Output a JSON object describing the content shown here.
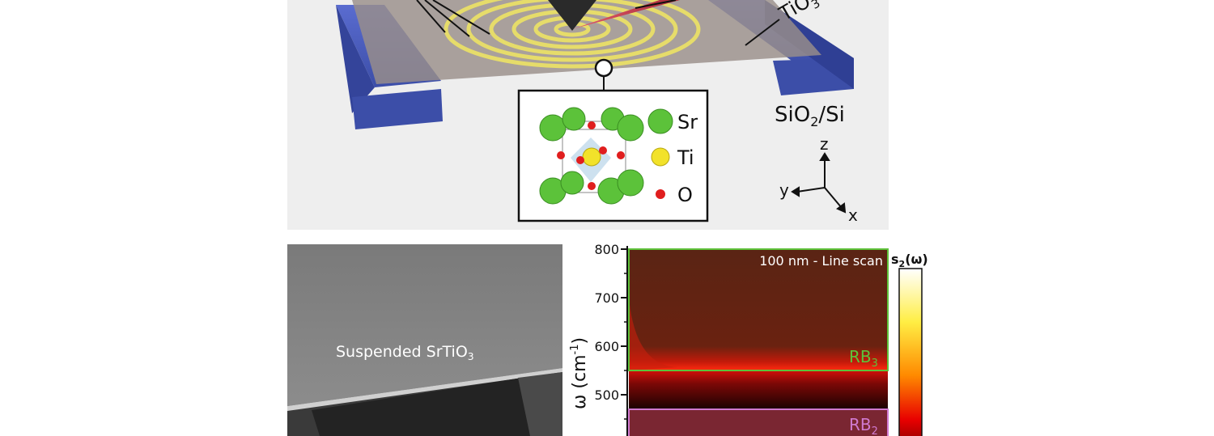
{
  "schematic": {
    "material_label": "TiO",
    "material_subscript": "3",
    "substrate_label": "SiO",
    "substrate_subscript": "2",
    "substrate_suffix": "/Si",
    "legend": [
      {
        "label": "Sr",
        "color": "#5cc23a"
      },
      {
        "label": "Ti",
        "color": "#f2e22a"
      },
      {
        "label": "O",
        "color": "#e01e1e"
      }
    ],
    "axes": {
      "z": "z",
      "y": "y",
      "x": "x"
    },
    "colors": {
      "membrane": "#9a8f8a",
      "pillar": "#4a5bb8",
      "rings": "#e6dc6a",
      "tip": "#2a2a2a",
      "beam": "#c83a4a"
    }
  },
  "sem_image": {
    "label": "Suspended SrTiO",
    "label_subscript": "3"
  },
  "chart_data": {
    "type": "heatmap",
    "title": "100 nm - Line scan",
    "ylabel": "ω (cm",
    "ylabel_sup": "-1",
    "ylabel_close": ")",
    "yticks": [
      800,
      700,
      600,
      500
    ],
    "ylim": [
      380,
      800
    ],
    "colorbar_label": "s",
    "colorbar_sub": "2",
    "colorbar_arg": "(ω)",
    "bands": [
      {
        "name": "RB",
        "sub": "3",
        "range": [
          550,
          800
        ],
        "color": "#5ec23a"
      },
      {
        "name": "RB",
        "sub": "2",
        "range": [
          380,
          470
        ],
        "color": "#d07ad0"
      }
    ],
    "dark_gap": [
      470,
      550
    ],
    "bright_edge": 555
  }
}
